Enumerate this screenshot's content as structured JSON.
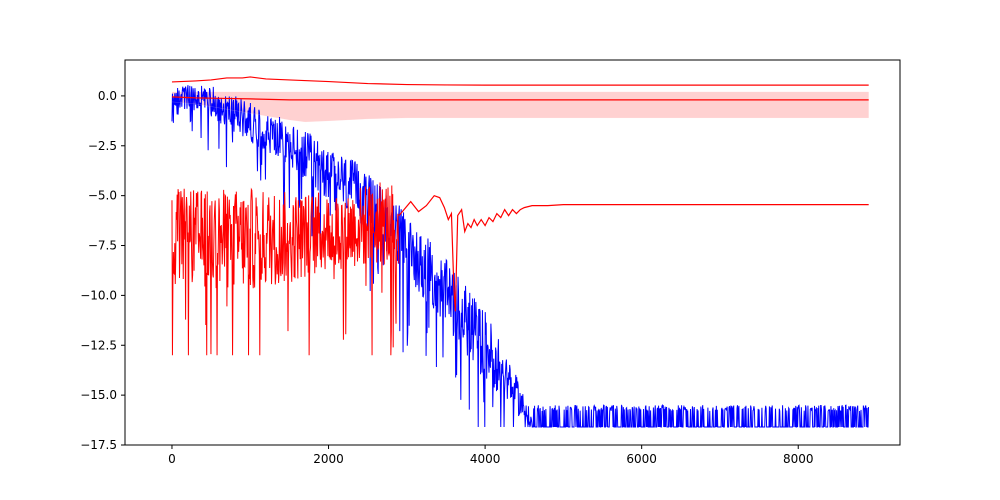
{
  "chart_data": {
    "type": "line",
    "title": "",
    "xlabel": "",
    "ylabel": "",
    "xlim": [
      -600,
      9300
    ],
    "ylim": [
      -17.5,
      1.8
    ],
    "grid": false,
    "legend": "none",
    "x_ticks": [
      0,
      2000,
      4000,
      6000,
      8000
    ],
    "x_tick_labels": [
      "0",
      "2000",
      "4000",
      "6000",
      "8000"
    ],
    "y_ticks": [
      0.0,
      -2.5,
      -5.0,
      -7.5,
      -10.0,
      -12.5,
      -15.0,
      -17.5
    ],
    "y_tick_labels": [
      "0.0",
      "−2.5",
      "−5.0",
      "−7.5",
      "−10.0",
      "−12.5",
      "−15.0",
      "−17.5"
    ],
    "colors": {
      "blue": "#0000ff",
      "red": "#ff0000",
      "band_fill": "#ffcccc",
      "axes": "#000000"
    },
    "series": [
      {
        "kind": "noisy",
        "color": "#0000ff",
        "trend_x": [
          0,
          500,
          1000,
          1500,
          2000,
          2500,
          3000,
          3500,
          4000,
          4300,
          4600,
          8900
        ],
        "trend_y": [
          0,
          -0.3,
          -1.3,
          -2.5,
          -3.8,
          -5.2,
          -7.5,
          -9.9,
          -12.5,
          -14.2,
          -16.5,
          -16.5
        ],
        "noise_x": [
          0,
          1000,
          2000,
          3000,
          4000,
          4600
        ],
        "noise_amp": [
          0.6,
          1.0,
          1.4,
          1.6,
          1.8,
          0.5
        ],
        "floor": -16.6,
        "sparse_from_x": 4600,
        "sparse_high": -15.8
      },
      {
        "kind": "noisy",
        "color": "#ff0000",
        "trend_x": [
          0,
          500,
          1000,
          1500,
          2000,
          2500,
          2900
        ],
        "trend_y": [
          -7.0,
          -7.2,
          -7.2,
          -7.1,
          -6.8,
          -6.5,
          -6.3
        ],
        "noise_x": [
          0,
          1000,
          2000,
          2900
        ],
        "noise_amp": [
          2.4,
          2.6,
          2.0,
          2.2
        ],
        "min": -13.0,
        "max": -4.1
      },
      {
        "kind": "line",
        "color": "#ff0000",
        "x": [
          2900,
          3050,
          3150,
          3250,
          3350,
          3420,
          3480,
          3530,
          3570,
          3600,
          3620,
          3650,
          3700,
          3740,
          3780,
          3820,
          3860,
          3900,
          3950,
          4000,
          4050,
          4100,
          4150,
          4200,
          4250,
          4300,
          4350,
          4400,
          4450,
          4500,
          4600,
          4800,
          5000,
          5500,
          6000,
          7000,
          8000,
          8900
        ],
        "y": [
          -6.0,
          -5.3,
          -5.8,
          -5.5,
          -5.0,
          -5.1,
          -5.6,
          -6.2,
          -5.9,
          -9.5,
          -10.8,
          -6.0,
          -5.7,
          -6.8,
          -6.4,
          -6.6,
          -6.2,
          -6.5,
          -6.2,
          -6.5,
          -6.1,
          -6.3,
          -5.9,
          -6.1,
          -5.7,
          -6.0,
          -5.7,
          -5.9,
          -5.7,
          -5.6,
          -5.5,
          -5.5,
          -5.45,
          -5.45,
          -5.45,
          -5.45,
          -5.45,
          -5.45
        ]
      },
      {
        "kind": "line",
        "color": "#ff0000",
        "x": [
          0,
          300,
          500,
          700,
          900,
          1000,
          1200,
          1500,
          2000,
          2500,
          3000,
          3500,
          4000,
          5000,
          6000,
          7000,
          8000,
          8900
        ],
        "y": [
          0.7,
          0.75,
          0.8,
          0.9,
          0.9,
          0.95,
          0.85,
          0.8,
          0.72,
          0.62,
          0.57,
          0.55,
          0.54,
          0.54,
          0.54,
          0.54,
          0.54,
          0.54
        ]
      },
      {
        "kind": "line",
        "color": "#ff0000",
        "x": [
          0,
          300,
          600,
          1000,
          1500,
          2000,
          2500,
          3000,
          4000,
          5000,
          6000,
          7000,
          8000,
          8900
        ],
        "y": [
          -0.05,
          -0.1,
          -0.12,
          -0.15,
          -0.2,
          -0.2,
          -0.2,
          -0.2,
          -0.2,
          -0.2,
          -0.2,
          -0.2,
          -0.2,
          -0.2
        ]
      },
      {
        "kind": "band",
        "color": "#ffcccc",
        "edge_color": "#ff0000",
        "x": [
          0,
          300,
          600,
          900,
          1200,
          1500,
          1700,
          2000,
          2500,
          3000,
          4000,
          5000,
          6000,
          7000,
          8000,
          8900
        ],
        "upper": [
          0.2,
          0.2,
          0.2,
          0.2,
          0.2,
          0.2,
          0.2,
          0.2,
          0.2,
          0.2,
          0.2,
          0.2,
          0.2,
          0.2,
          0.2,
          0.2
        ],
        "lower": [
          -0.3,
          -0.4,
          -0.6,
          -0.8,
          -1.0,
          -1.2,
          -1.3,
          -1.25,
          -1.15,
          -1.1,
          -1.1,
          -1.1,
          -1.1,
          -1.1,
          -1.1,
          -1.1
        ]
      }
    ]
  }
}
